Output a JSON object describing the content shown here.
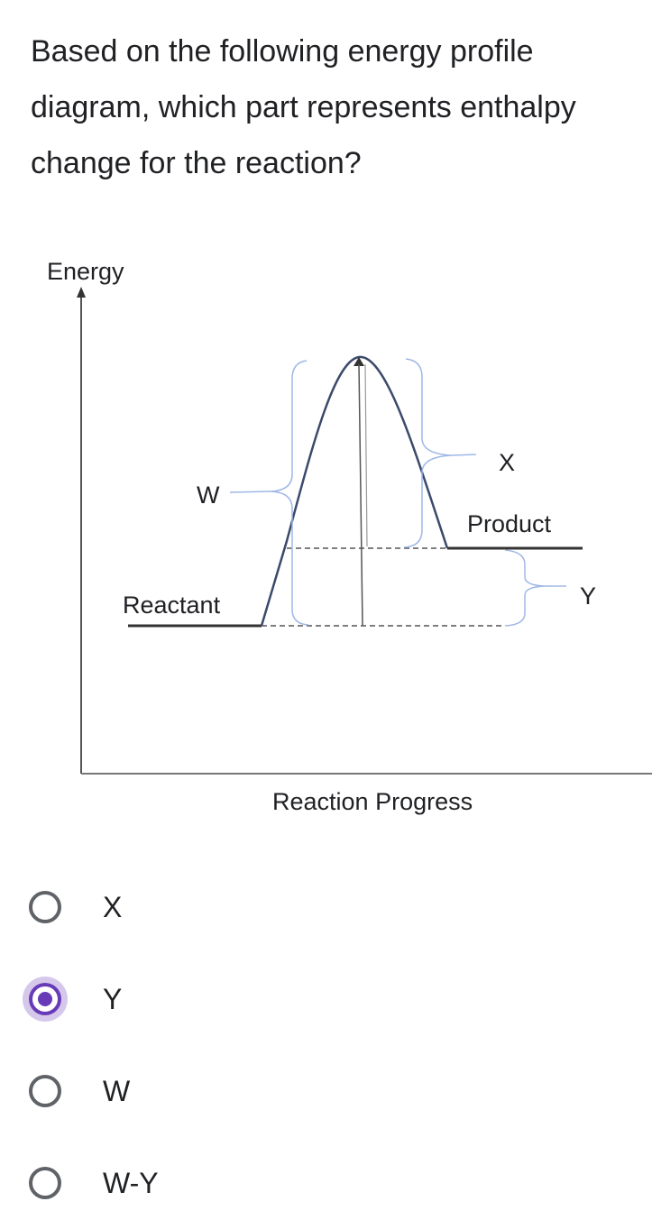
{
  "question": {
    "text": "Based on the following energy profile diagram, which part represents enthalpy change for the reaction?"
  },
  "diagram": {
    "y_axis_label": "Energy",
    "x_axis_label": "Reaction Progress",
    "labels": {
      "w": "W",
      "x": "X",
      "y": "Y",
      "reactant": "Reactant",
      "product": "Product"
    },
    "colors": {
      "curve": "#3b4a6b",
      "brace": "#9fb8e6",
      "axis": "#555555"
    }
  },
  "options": [
    {
      "label": "X",
      "selected": false
    },
    {
      "label": "Y",
      "selected": true
    },
    {
      "label": "W",
      "selected": false
    },
    {
      "label": "W-Y",
      "selected": false
    }
  ],
  "colors": {
    "accent": "#673ab7",
    "radio_border": "#5f6368"
  }
}
